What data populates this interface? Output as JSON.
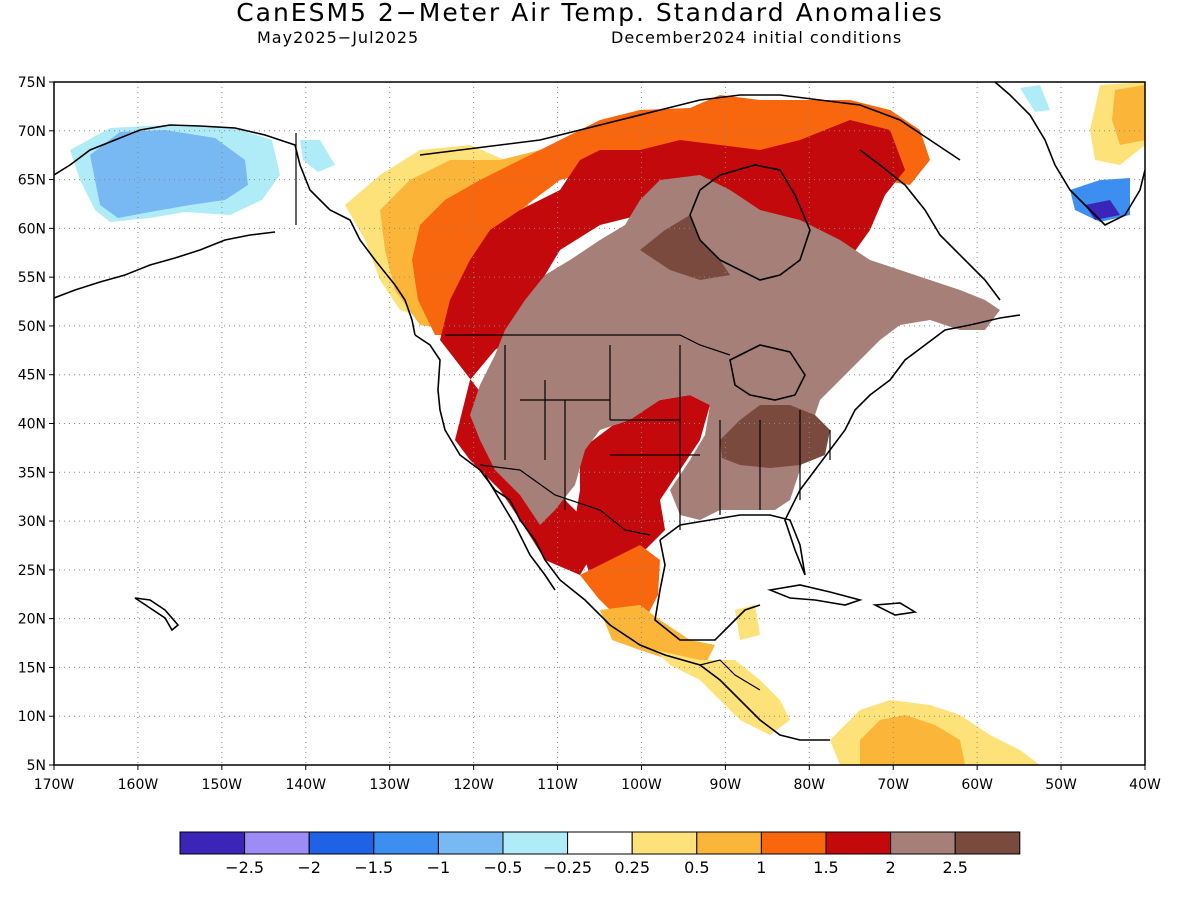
{
  "title": "CanESM5 2−Meter Air Temp. Standard Anomalies",
  "subtitle_left": "May2025−Jul2025",
  "subtitle_right": "December2024 initial conditions",
  "map": {
    "lon_range": [
      -170,
      -40
    ],
    "lat_range": [
      5,
      75
    ],
    "lat_ticks": [
      "5N",
      "10N",
      "15N",
      "20N",
      "25N",
      "30N",
      "35N",
      "40N",
      "45N",
      "50N",
      "55N",
      "60N",
      "65N",
      "70N",
      "75N"
    ],
    "lon_ticks": [
      "170W",
      "160W",
      "150W",
      "140W",
      "130W",
      "120W",
      "110W",
      "100W",
      "90W",
      "80W",
      "70W",
      "60W",
      "50W",
      "40W"
    ],
    "grid": "dotted"
  },
  "colorbar": {
    "colors": [
      "#3a25b8",
      "#9d8cf5",
      "#1e62e6",
      "#3c8ff0",
      "#78b8f3",
      "#b0ecf8",
      "#ffffff",
      "#fde27a",
      "#fbb63a",
      "#f8670e",
      "#c4090c",
      "#a67f78",
      "#7a4a3e"
    ],
    "labels": [
      "−2.5",
      "−2",
      "−1.5",
      "−1",
      "−0.5",
      "−0.25",
      "0.25",
      "0.5",
      "1",
      "1.5",
      "2",
      "2.5"
    ]
  },
  "regions": [
    {
      "name": "alaska-cool",
      "color": "#78b8f3"
    },
    {
      "name": "alaska-cool-edge",
      "color": "#b0ecf8"
    },
    {
      "name": "west-canada-warm",
      "color": "#fde27a"
    },
    {
      "name": "west-canada-warm2",
      "color": "#fbb63a"
    },
    {
      "name": "west-canada-warm3",
      "color": "#f8670e"
    },
    {
      "name": "west-warm-strong",
      "color": "#c4090c"
    },
    {
      "name": "interior-very-warm",
      "color": "#a67f78"
    },
    {
      "name": "ohio-valley-extreme",
      "color": "#7a4a3e"
    },
    {
      "name": "hudson-bay-extreme",
      "color": "#7a4a3e"
    },
    {
      "name": "greenland-cool",
      "color": "#3c8ff0"
    },
    {
      "name": "greenland-cool-strong",
      "color": "#3a25b8"
    },
    {
      "name": "south-america-warm",
      "color": "#fde27a"
    }
  ]
}
